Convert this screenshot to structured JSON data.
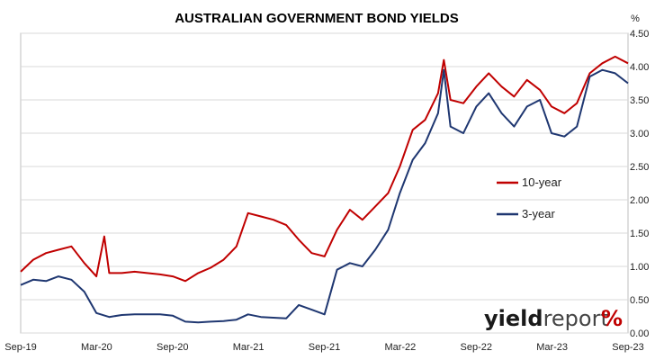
{
  "chart_data": {
    "type": "line",
    "title": "AUSTRALIAN GOVERNMENT BOND YIELDS",
    "y_unit": "%",
    "ylim": [
      0,
      4.5
    ],
    "y_ticks": [
      "0.00",
      "0.50",
      "1.00",
      "1.50",
      "2.00",
      "2.50",
      "3.00",
      "3.50",
      "4.00",
      "4.50"
    ],
    "x_tick_labels": [
      "Sep-19",
      "Mar-20",
      "Sep-20",
      "Mar-21",
      "Sep-21",
      "Mar-22",
      "Sep-22",
      "Mar-23",
      "Sep-23"
    ],
    "x_start": "2019-09",
    "x_end": "2023-09",
    "grid": true,
    "legend_position": "right",
    "series": [
      {
        "name": "10-year",
        "color": "#c00000",
        "points": [
          [
            "2019-09-01",
            0.92
          ],
          [
            "2019-10-01",
            1.1
          ],
          [
            "2019-11-01",
            1.2
          ],
          [
            "2019-12-01",
            1.25
          ],
          [
            "2020-01-01",
            1.3
          ],
          [
            "2020-02-01",
            1.05
          ],
          [
            "2020-03-01",
            0.85
          ],
          [
            "2020-03-20",
            1.45
          ],
          [
            "2020-04-01",
            0.9
          ],
          [
            "2020-05-01",
            0.9
          ],
          [
            "2020-06-01",
            0.92
          ],
          [
            "2020-07-01",
            0.9
          ],
          [
            "2020-08-01",
            0.88
          ],
          [
            "2020-09-01",
            0.85
          ],
          [
            "2020-10-01",
            0.78
          ],
          [
            "2020-11-01",
            0.9
          ],
          [
            "2020-12-01",
            0.98
          ],
          [
            "2021-01-01",
            1.1
          ],
          [
            "2021-02-01",
            1.3
          ],
          [
            "2021-03-01",
            1.8
          ],
          [
            "2021-04-01",
            1.75
          ],
          [
            "2021-05-01",
            1.7
          ],
          [
            "2021-06-01",
            1.62
          ],
          [
            "2021-07-01",
            1.4
          ],
          [
            "2021-08-01",
            1.2
          ],
          [
            "2021-09-01",
            1.15
          ],
          [
            "2021-10-01",
            1.55
          ],
          [
            "2021-11-01",
            1.85
          ],
          [
            "2021-12-01",
            1.7
          ],
          [
            "2022-01-01",
            1.9
          ],
          [
            "2022-02-01",
            2.1
          ],
          [
            "2022-03-01",
            2.5
          ],
          [
            "2022-04-01",
            3.05
          ],
          [
            "2022-05-01",
            3.2
          ],
          [
            "2022-06-01",
            3.6
          ],
          [
            "2022-06-15",
            4.1
          ],
          [
            "2022-07-01",
            3.5
          ],
          [
            "2022-08-01",
            3.45
          ],
          [
            "2022-09-01",
            3.7
          ],
          [
            "2022-10-01",
            3.9
          ],
          [
            "2022-11-01",
            3.7
          ],
          [
            "2022-12-01",
            3.55
          ],
          [
            "2023-01-01",
            3.8
          ],
          [
            "2023-02-01",
            3.65
          ],
          [
            "2023-03-01",
            3.4
          ],
          [
            "2023-04-01",
            3.3
          ],
          [
            "2023-05-01",
            3.45
          ],
          [
            "2023-06-01",
            3.9
          ],
          [
            "2023-07-01",
            4.05
          ],
          [
            "2023-08-01",
            4.15
          ],
          [
            "2023-09-01",
            4.05
          ]
        ]
      },
      {
        "name": "3-year",
        "color": "#1f3771",
        "points": [
          [
            "2019-09-01",
            0.72
          ],
          [
            "2019-10-01",
            0.8
          ],
          [
            "2019-11-01",
            0.78
          ],
          [
            "2019-12-01",
            0.85
          ],
          [
            "2020-01-01",
            0.8
          ],
          [
            "2020-02-01",
            0.62
          ],
          [
            "2020-03-01",
            0.3
          ],
          [
            "2020-04-01",
            0.24
          ],
          [
            "2020-05-01",
            0.27
          ],
          [
            "2020-06-01",
            0.28
          ],
          [
            "2020-07-01",
            0.28
          ],
          [
            "2020-08-01",
            0.28
          ],
          [
            "2020-09-01",
            0.26
          ],
          [
            "2020-10-01",
            0.17
          ],
          [
            "2020-11-01",
            0.16
          ],
          [
            "2020-12-01",
            0.17
          ],
          [
            "2021-01-01",
            0.18
          ],
          [
            "2021-02-01",
            0.2
          ],
          [
            "2021-03-01",
            0.28
          ],
          [
            "2021-04-01",
            0.24
          ],
          [
            "2021-05-01",
            0.23
          ],
          [
            "2021-06-01",
            0.22
          ],
          [
            "2021-07-01",
            0.42
          ],
          [
            "2021-08-01",
            0.35
          ],
          [
            "2021-09-01",
            0.28
          ],
          [
            "2021-10-01",
            0.95
          ],
          [
            "2021-11-01",
            1.05
          ],
          [
            "2021-12-01",
            1.0
          ],
          [
            "2022-01-01",
            1.25
          ],
          [
            "2022-02-01",
            1.55
          ],
          [
            "2022-03-01",
            2.1
          ],
          [
            "2022-04-01",
            2.6
          ],
          [
            "2022-05-01",
            2.85
          ],
          [
            "2022-06-01",
            3.3
          ],
          [
            "2022-06-15",
            3.95
          ],
          [
            "2022-07-01",
            3.1
          ],
          [
            "2022-08-01",
            3.0
          ],
          [
            "2022-09-01",
            3.4
          ],
          [
            "2022-10-01",
            3.6
          ],
          [
            "2022-11-01",
            3.3
          ],
          [
            "2022-12-01",
            3.1
          ],
          [
            "2023-01-01",
            3.4
          ],
          [
            "2023-02-01",
            3.5
          ],
          [
            "2023-03-01",
            3.0
          ],
          [
            "2023-04-01",
            2.95
          ],
          [
            "2023-05-01",
            3.1
          ],
          [
            "2023-06-01",
            3.85
          ],
          [
            "2023-07-01",
            3.95
          ],
          [
            "2023-08-01",
            3.9
          ],
          [
            "2023-09-01",
            3.75
          ]
        ]
      }
    ]
  },
  "logo": {
    "text_bold": "yield",
    "text_light": "report",
    "symbol": "%"
  }
}
